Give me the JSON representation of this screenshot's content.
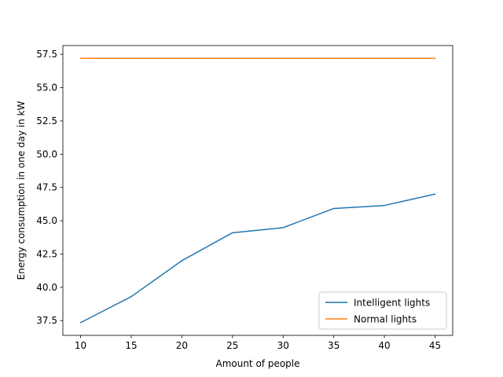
{
  "chart_data": {
    "type": "line",
    "title": "",
    "xlabel": "Amount of people",
    "ylabel": "Energy consumption in one day in kW",
    "x": [
      10,
      15,
      20,
      25,
      30,
      35,
      40,
      45
    ],
    "xlim": [
      8.25,
      46.75
    ],
    "ylim": [
      36.39,
      58.16
    ],
    "xticks": [
      10,
      15,
      20,
      25,
      30,
      35,
      40,
      45
    ],
    "xtick_labels": [
      "10",
      "15",
      "20",
      "25",
      "30",
      "35",
      "40",
      "45"
    ],
    "yticks": [
      37.5,
      40.0,
      42.5,
      45.0,
      47.5,
      50.0,
      52.5,
      55.0,
      57.5
    ],
    "ytick_labels": [
      "37.5",
      "40.0",
      "42.5",
      "45.0",
      "47.5",
      "50.0",
      "52.5",
      "55.0",
      "57.5"
    ],
    "grid": false,
    "legend_position": "bottom-right",
    "series": [
      {
        "name": "Intelligent lights",
        "color": "#1f77b4",
        "values": [
          37.35,
          39.3,
          42.0,
          44.1,
          44.48,
          45.92,
          46.15,
          47.0
        ]
      },
      {
        "name": "Normal lights",
        "color": "#ff7f0e",
        "values": [
          57.2,
          57.2,
          57.2,
          57.2,
          57.2,
          57.2,
          57.2,
          57.2
        ]
      }
    ]
  }
}
